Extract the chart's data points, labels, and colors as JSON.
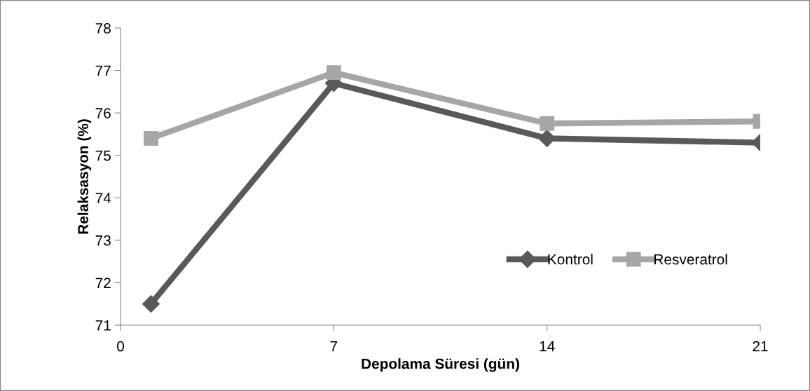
{
  "chart_data": {
    "type": "line",
    "xlabel": "Depolama Süresi (gün)",
    "ylabel": "Relaksasyon (%)",
    "x": [
      1,
      7,
      14,
      21
    ],
    "series": [
      {
        "name": "Kontrol",
        "color": "#595959",
        "marker": "diamond",
        "values": [
          71.5,
          76.7,
          75.4,
          75.3
        ]
      },
      {
        "name": "Resveratrol",
        "color": "#a6a6a6",
        "marker": "square",
        "values": [
          75.4,
          76.95,
          75.75,
          75.8
        ]
      }
    ],
    "xlim": [
      0,
      21
    ],
    "xticks": [
      0,
      7,
      14,
      21
    ],
    "ylim": [
      71,
      78
    ],
    "yticks": [
      71,
      72,
      73,
      74,
      75,
      76,
      77,
      78
    ],
    "grid": false,
    "legend": "bottom right",
    "line_style": "solid"
  }
}
